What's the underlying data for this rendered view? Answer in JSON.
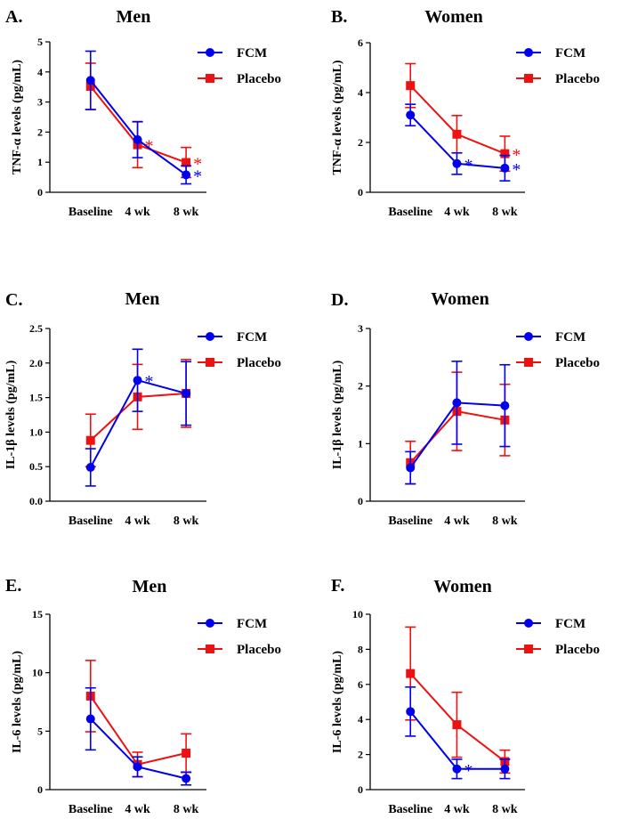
{
  "figure": {
    "colors": {
      "fcm": "#0000ee",
      "placebo": "#ee1111",
      "axis": "#000000"
    }
  },
  "chart_data": [
    {
      "id": "A",
      "type": "line",
      "panel_label": "A.",
      "title": "Men",
      "ylabel": "TNF-α levels (pg/mL)",
      "xlabel": "",
      "categories": [
        "Baseline",
        "4 wk",
        "8 wk"
      ],
      "ylim": [
        0,
        5
      ],
      "yticks": [
        "0",
        "1",
        "2",
        "3",
        "4",
        "5"
      ],
      "legend": [
        "FCM",
        "Placebo"
      ],
      "legend_position": "top-right",
      "series": [
        {
          "name": "FCM",
          "values": [
            3.72,
            1.75,
            0.58
          ],
          "err": [
            0.97,
            0.6,
            0.3
          ],
          "marker": "circle"
        },
        {
          "name": "Placebo",
          "values": [
            3.52,
            1.58,
            0.99
          ],
          "err": [
            0.77,
            0.76,
            0.5
          ],
          "marker": "square"
        }
      ],
      "significance": [
        {
          "series": "Placebo",
          "index": 1,
          "symbol": "*"
        },
        {
          "series": "Placebo",
          "index": 2,
          "symbol": "*"
        },
        {
          "series": "FCM",
          "index": 2,
          "symbol": "*"
        }
      ]
    },
    {
      "id": "B",
      "type": "line",
      "panel_label": "B.",
      "title": "Women",
      "ylabel": "TNF-α levels (pg/mL)",
      "xlabel": "",
      "categories": [
        "Baseline",
        "4 wk",
        "8 wk"
      ],
      "ylim": [
        0,
        6
      ],
      "yticks": [
        "0",
        "2",
        "4",
        "6"
      ],
      "legend": [
        "FCM",
        "Placebo"
      ],
      "legend_position": "top-right",
      "series": [
        {
          "name": "FCM",
          "values": [
            3.1,
            1.15,
            0.97
          ],
          "err": [
            0.43,
            0.43,
            0.51
          ],
          "marker": "circle"
        },
        {
          "name": "Placebo",
          "values": [
            4.28,
            2.33,
            1.55
          ],
          "err": [
            0.88,
            0.75,
            0.7
          ],
          "marker": "square"
        }
      ],
      "significance": [
        {
          "series": "FCM",
          "index": 1,
          "symbol": "*"
        },
        {
          "series": "Placebo",
          "index": 2,
          "symbol": "*"
        },
        {
          "series": "FCM",
          "index": 2,
          "symbol": "*"
        }
      ]
    },
    {
      "id": "C",
      "type": "line",
      "panel_label": "C.",
      "title": "Men",
      "ylabel": "IL-1β levels (pg/mL)",
      "xlabel": "",
      "categories": [
        "Baseline",
        "4 wk",
        "8 wk"
      ],
      "ylim": [
        0,
        2.5
      ],
      "yticks": [
        "0.0",
        "0.5",
        "1.0",
        "1.5",
        "2.0",
        "2.5"
      ],
      "legend": [
        "FCM",
        "Placebo"
      ],
      "legend_position": "top-right",
      "series": [
        {
          "name": "FCM",
          "values": [
            0.49,
            1.75,
            1.56
          ],
          "err": [
            0.27,
            0.45,
            0.46
          ],
          "marker": "circle"
        },
        {
          "name": "Placebo",
          "values": [
            0.88,
            1.51,
            1.56
          ],
          "err": [
            0.38,
            0.47,
            0.49
          ],
          "marker": "square"
        }
      ],
      "significance": [
        {
          "series": "FCM",
          "index": 1,
          "symbol": "*"
        }
      ]
    },
    {
      "id": "D",
      "type": "line",
      "panel_label": "D.",
      "title": "Women",
      "ylabel": "IL-1β levels (pg/mL)",
      "xlabel": "",
      "categories": [
        "Baseline",
        "4 wk",
        "8 wk"
      ],
      "ylim": [
        0,
        3
      ],
      "yticks": [
        "0",
        "1",
        "2",
        "3"
      ],
      "legend": [
        "FCM",
        "Placebo"
      ],
      "legend_position": "top-right",
      "series": [
        {
          "name": "FCM",
          "values": [
            0.58,
            1.71,
            1.66
          ],
          "err": [
            0.28,
            0.72,
            0.71
          ],
          "marker": "circle"
        },
        {
          "name": "Placebo",
          "values": [
            0.67,
            1.56,
            1.41
          ],
          "err": [
            0.37,
            0.68,
            0.62
          ],
          "marker": "square"
        }
      ],
      "significance": []
    },
    {
      "id": "E",
      "type": "line",
      "panel_label": "E.",
      "title": "Men",
      "ylabel": "IL-6 levels (pg/mL)",
      "xlabel": "",
      "categories": [
        "Baseline",
        "4 wk",
        "8 wk"
      ],
      "ylim": [
        0,
        15
      ],
      "yticks": [
        "0",
        "5",
        "10",
        "15"
      ],
      "legend": [
        "FCM",
        "Placebo"
      ],
      "legend_position": "top-right",
      "series": [
        {
          "name": "FCM",
          "values": [
            6.05,
            1.95,
            0.95
          ],
          "err": [
            2.65,
            0.85,
            0.55
          ],
          "marker": "circle"
        },
        {
          "name": "Placebo",
          "values": [
            8.0,
            2.15,
            3.12
          ],
          "err": [
            3.05,
            1.05,
            1.65
          ],
          "marker": "square"
        }
      ],
      "significance": []
    },
    {
      "id": "F",
      "type": "line",
      "panel_label": "F.",
      "title": "Women",
      "ylabel": "IL-6 levels (pg/mL)",
      "xlabel": "",
      "categories": [
        "Baseline",
        "4 wk",
        "8 wk"
      ],
      "ylim": [
        0,
        10
      ],
      "yticks": [
        "0",
        "2",
        "4",
        "6",
        "8",
        "10"
      ],
      "legend": [
        "FCM",
        "Placebo"
      ],
      "legend_position": "top-right",
      "series": [
        {
          "name": "FCM",
          "values": [
            4.45,
            1.18,
            1.18
          ],
          "err": [
            1.4,
            0.55,
            0.55
          ],
          "marker": "circle"
        },
        {
          "name": "Placebo",
          "values": [
            6.62,
            3.7,
            1.6
          ],
          "err": [
            2.65,
            1.85,
            0.65
          ],
          "marker": "square"
        }
      ],
      "significance": [
        {
          "series": "FCM",
          "index": 1,
          "symbol": "*"
        }
      ]
    }
  ]
}
